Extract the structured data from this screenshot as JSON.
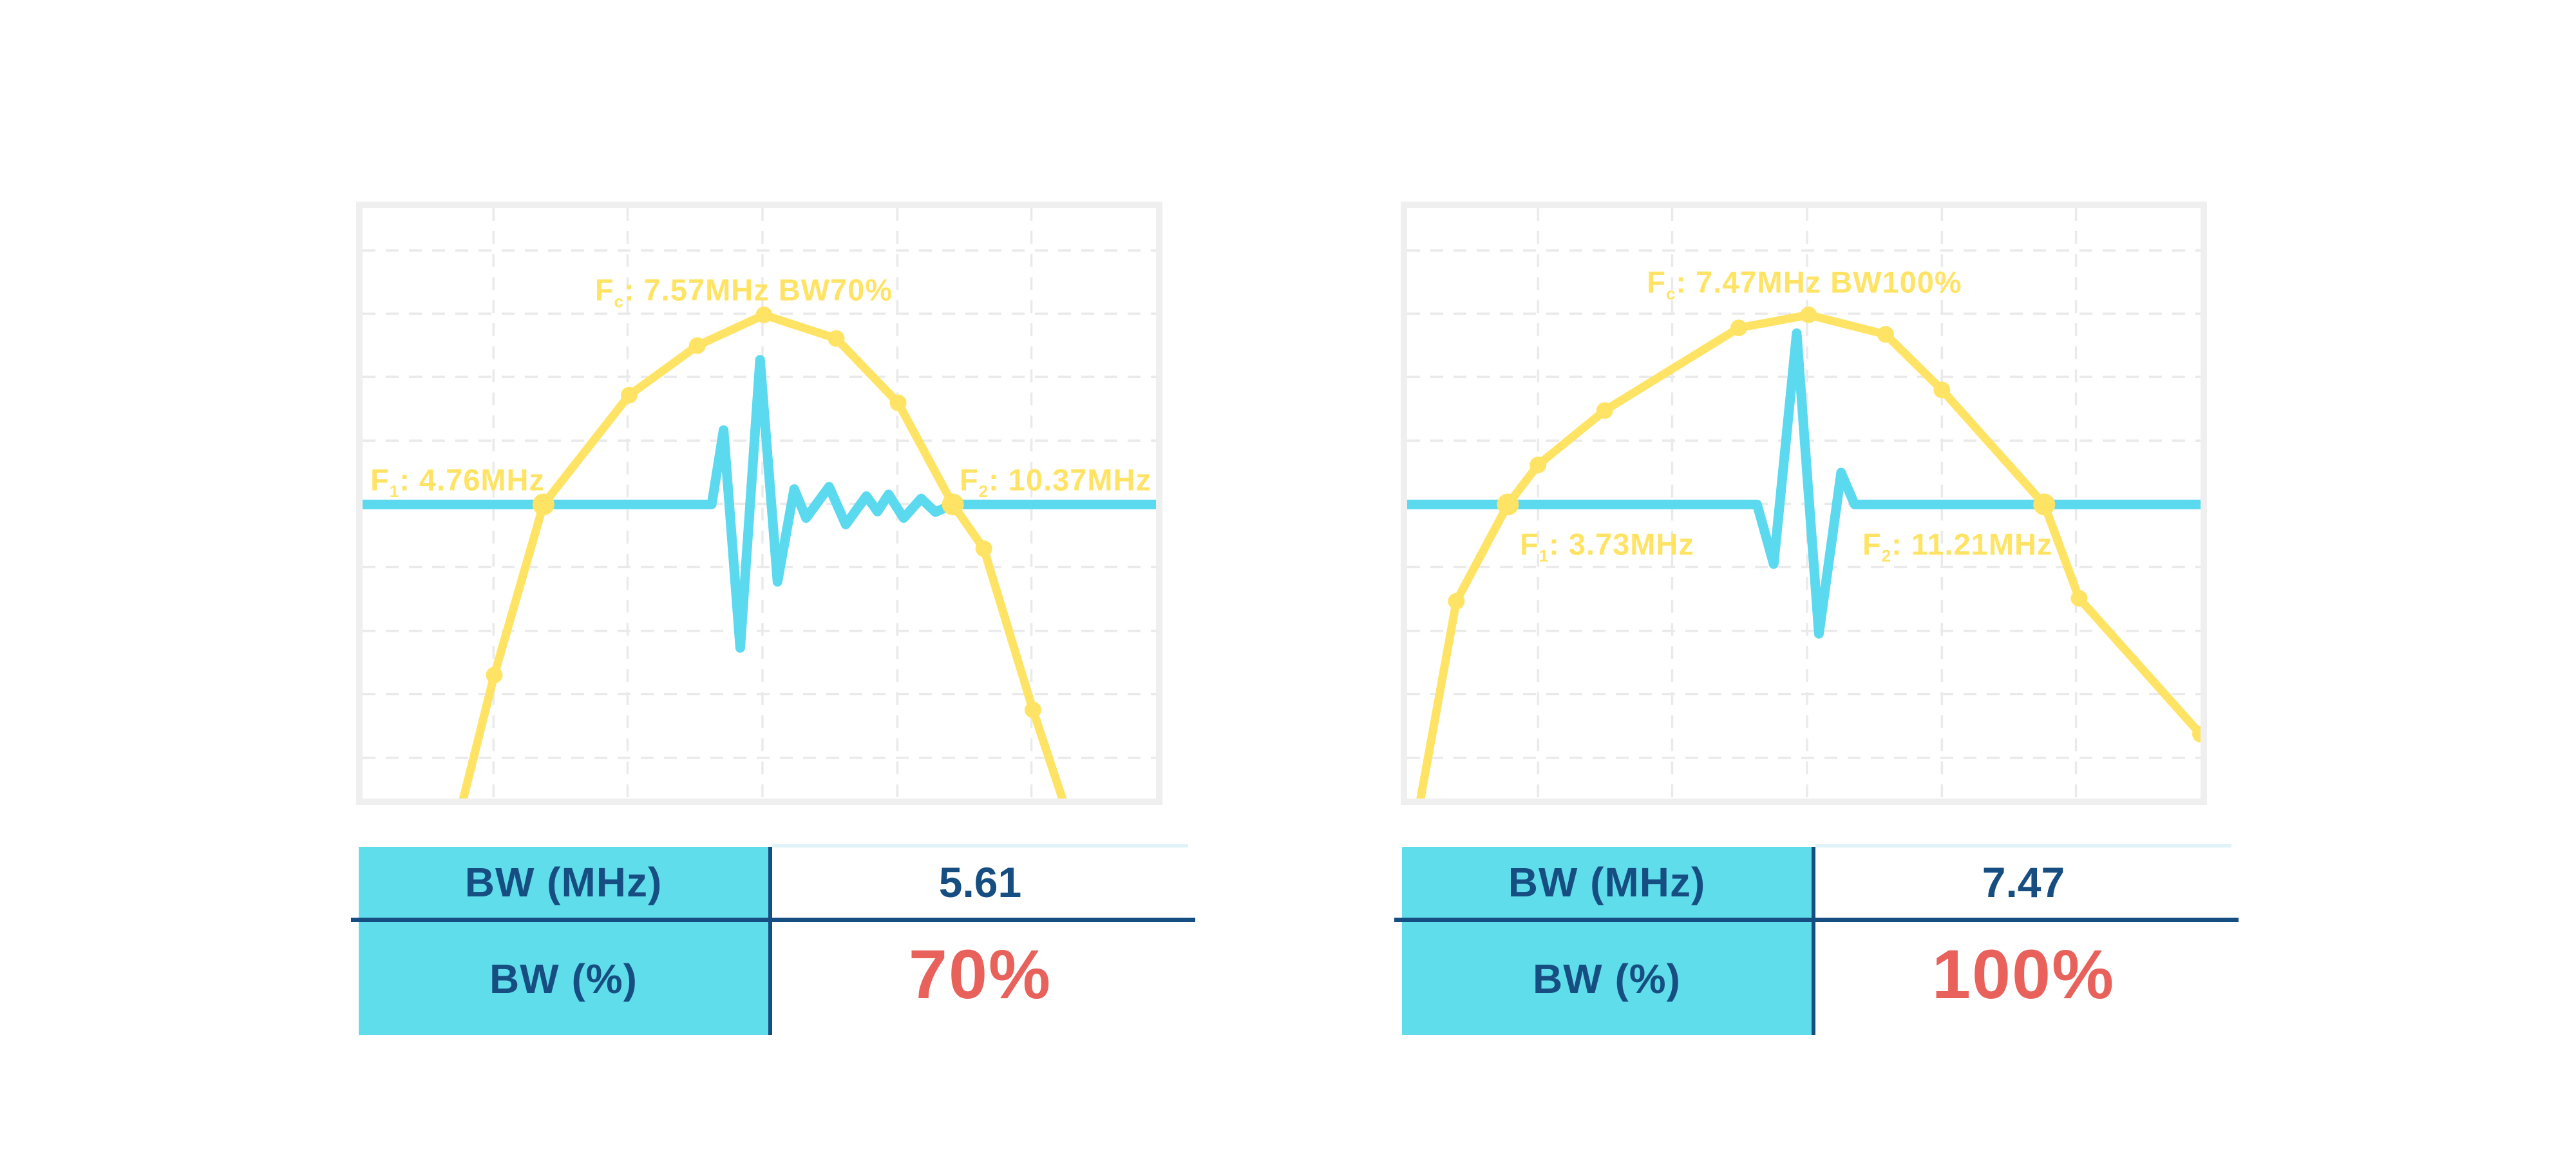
{
  "colors": {
    "background": "#FFFFFF",
    "yellow": "#FFE365",
    "cyan": "#5BD9EE",
    "tablecyan": "#5FDDEB",
    "navy": "#174E82",
    "red": "#E8625B",
    "frame": "#EFEFEF",
    "grid": "#EAEAEA",
    "lightrule": "#DDF3F7"
  },
  "grid": {
    "style": "dashed",
    "dash": [
      20,
      16
    ],
    "x_lines": [
      0.165,
      0.334,
      0.504,
      0.674,
      0.843
    ],
    "y_lines": [
      0.072,
      0.179,
      0.286,
      0.394,
      0.501,
      0.608,
      0.716,
      0.823,
      0.931
    ]
  },
  "chart_data": [
    {
      "type": "line",
      "title": "Fc: 7.57MHz BW70%",
      "axes_visible": false,
      "legend": false,
      "annotations": {
        "fc": {
          "pre": "F",
          "sub": "c",
          "rest": ": 7.57MHz BW70%"
        },
        "f1": {
          "pre": "F",
          "sub": "1",
          "rest": ": 4.76MHz"
        },
        "f2": {
          "pre": "F",
          "sub": "2",
          "rest": ": 10.37MHz"
        }
      },
      "values": {
        "fc_MHz": 7.57,
        "f1_MHz": 4.76,
        "f2_MHz": 10.37,
        "bw_MHz": 5.61,
        "bw_pct": 70
      },
      "series": [
        {
          "name": "spectrum",
          "color_key": "yellow",
          "points": [
            [
              0.127,
              1.0,
              0
            ],
            [
              0.166,
              0.791,
              1
            ],
            [
              0.228,
              0.502,
              2
            ],
            [
              0.336,
              0.317,
              1
            ],
            [
              0.422,
              0.233,
              1
            ],
            [
              0.506,
              0.181,
              1
            ],
            [
              0.597,
              0.221,
              1
            ],
            [
              0.675,
              0.33,
              1
            ],
            [
              0.744,
              0.502,
              2
            ],
            [
              0.783,
              0.577,
              1
            ],
            [
              0.845,
              0.85,
              1
            ],
            [
              0.882,
              1.0,
              0
            ]
          ]
        },
        {
          "name": "pulse",
          "color_key": "cyan",
          "points": [
            [
              0.0,
              0.502
            ],
            [
              0.44,
              0.502
            ],
            [
              0.455,
              0.376
            ],
            [
              0.476,
              0.745
            ],
            [
              0.501,
              0.257
            ],
            [
              0.523,
              0.633
            ],
            [
              0.544,
              0.476
            ],
            [
              0.559,
              0.525
            ],
            [
              0.588,
              0.472
            ],
            [
              0.609,
              0.536
            ],
            [
              0.635,
              0.488
            ],
            [
              0.649,
              0.514
            ],
            [
              0.663,
              0.485
            ],
            [
              0.682,
              0.525
            ],
            [
              0.704,
              0.492
            ],
            [
              0.722,
              0.515
            ],
            [
              0.744,
              0.502
            ],
            [
              1.0,
              0.502
            ]
          ]
        }
      ],
      "table": {
        "rows": [
          {
            "label": "BW (MHz)",
            "value": "5.61"
          },
          {
            "label": "BW (%)",
            "value": "70%"
          }
        ]
      }
    },
    {
      "type": "line",
      "title": "Fc: 7.47MHz BW100%",
      "axes_visible": false,
      "legend": false,
      "annotations": {
        "fc": {
          "pre": "F",
          "sub": "c",
          "rest": ": 7.47MHz BW100%"
        },
        "f1": {
          "pre": "F",
          "sub": "1",
          "rest": ": 3.73MHz"
        },
        "f2": {
          "pre": "F",
          "sub": "2",
          "rest": ": 11.21MHz"
        }
      },
      "values": {
        "fc_MHz": 7.47,
        "f1_MHz": 3.73,
        "f2_MHz": 11.21,
        "bw_MHz": 7.47,
        "bw_pct": 100
      },
      "series": [
        {
          "name": "spectrum",
          "color_key": "yellow",
          "points": [
            [
              0.017,
              1.0,
              0
            ],
            [
              0.062,
              0.666,
              1
            ],
            [
              0.127,
              0.502,
              2
            ],
            [
              0.165,
              0.435,
              1
            ],
            [
              0.249,
              0.343,
              1
            ],
            [
              0.418,
              0.203,
              1
            ],
            [
              0.506,
              0.181,
              1
            ],
            [
              0.603,
              0.214,
              1
            ],
            [
              0.674,
              0.308,
              1
            ],
            [
              0.803,
              0.502,
              2
            ],
            [
              0.847,
              0.661,
              1
            ],
            [
              1.0,
              0.891,
              1
            ]
          ]
        },
        {
          "name": "pulse",
          "color_key": "cyan",
          "points": [
            [
              0.0,
              0.502
            ],
            [
              0.441,
              0.502
            ],
            [
              0.462,
              0.603
            ],
            [
              0.491,
              0.212
            ],
            [
              0.519,
              0.721
            ],
            [
              0.547,
              0.448
            ],
            [
              0.564,
              0.502
            ],
            [
              1.0,
              0.502
            ]
          ]
        }
      ],
      "table": {
        "rows": [
          {
            "label": "BW (MHz)",
            "value": "7.47"
          },
          {
            "label": "BW (%)",
            "value": "100%"
          }
        ]
      }
    }
  ]
}
